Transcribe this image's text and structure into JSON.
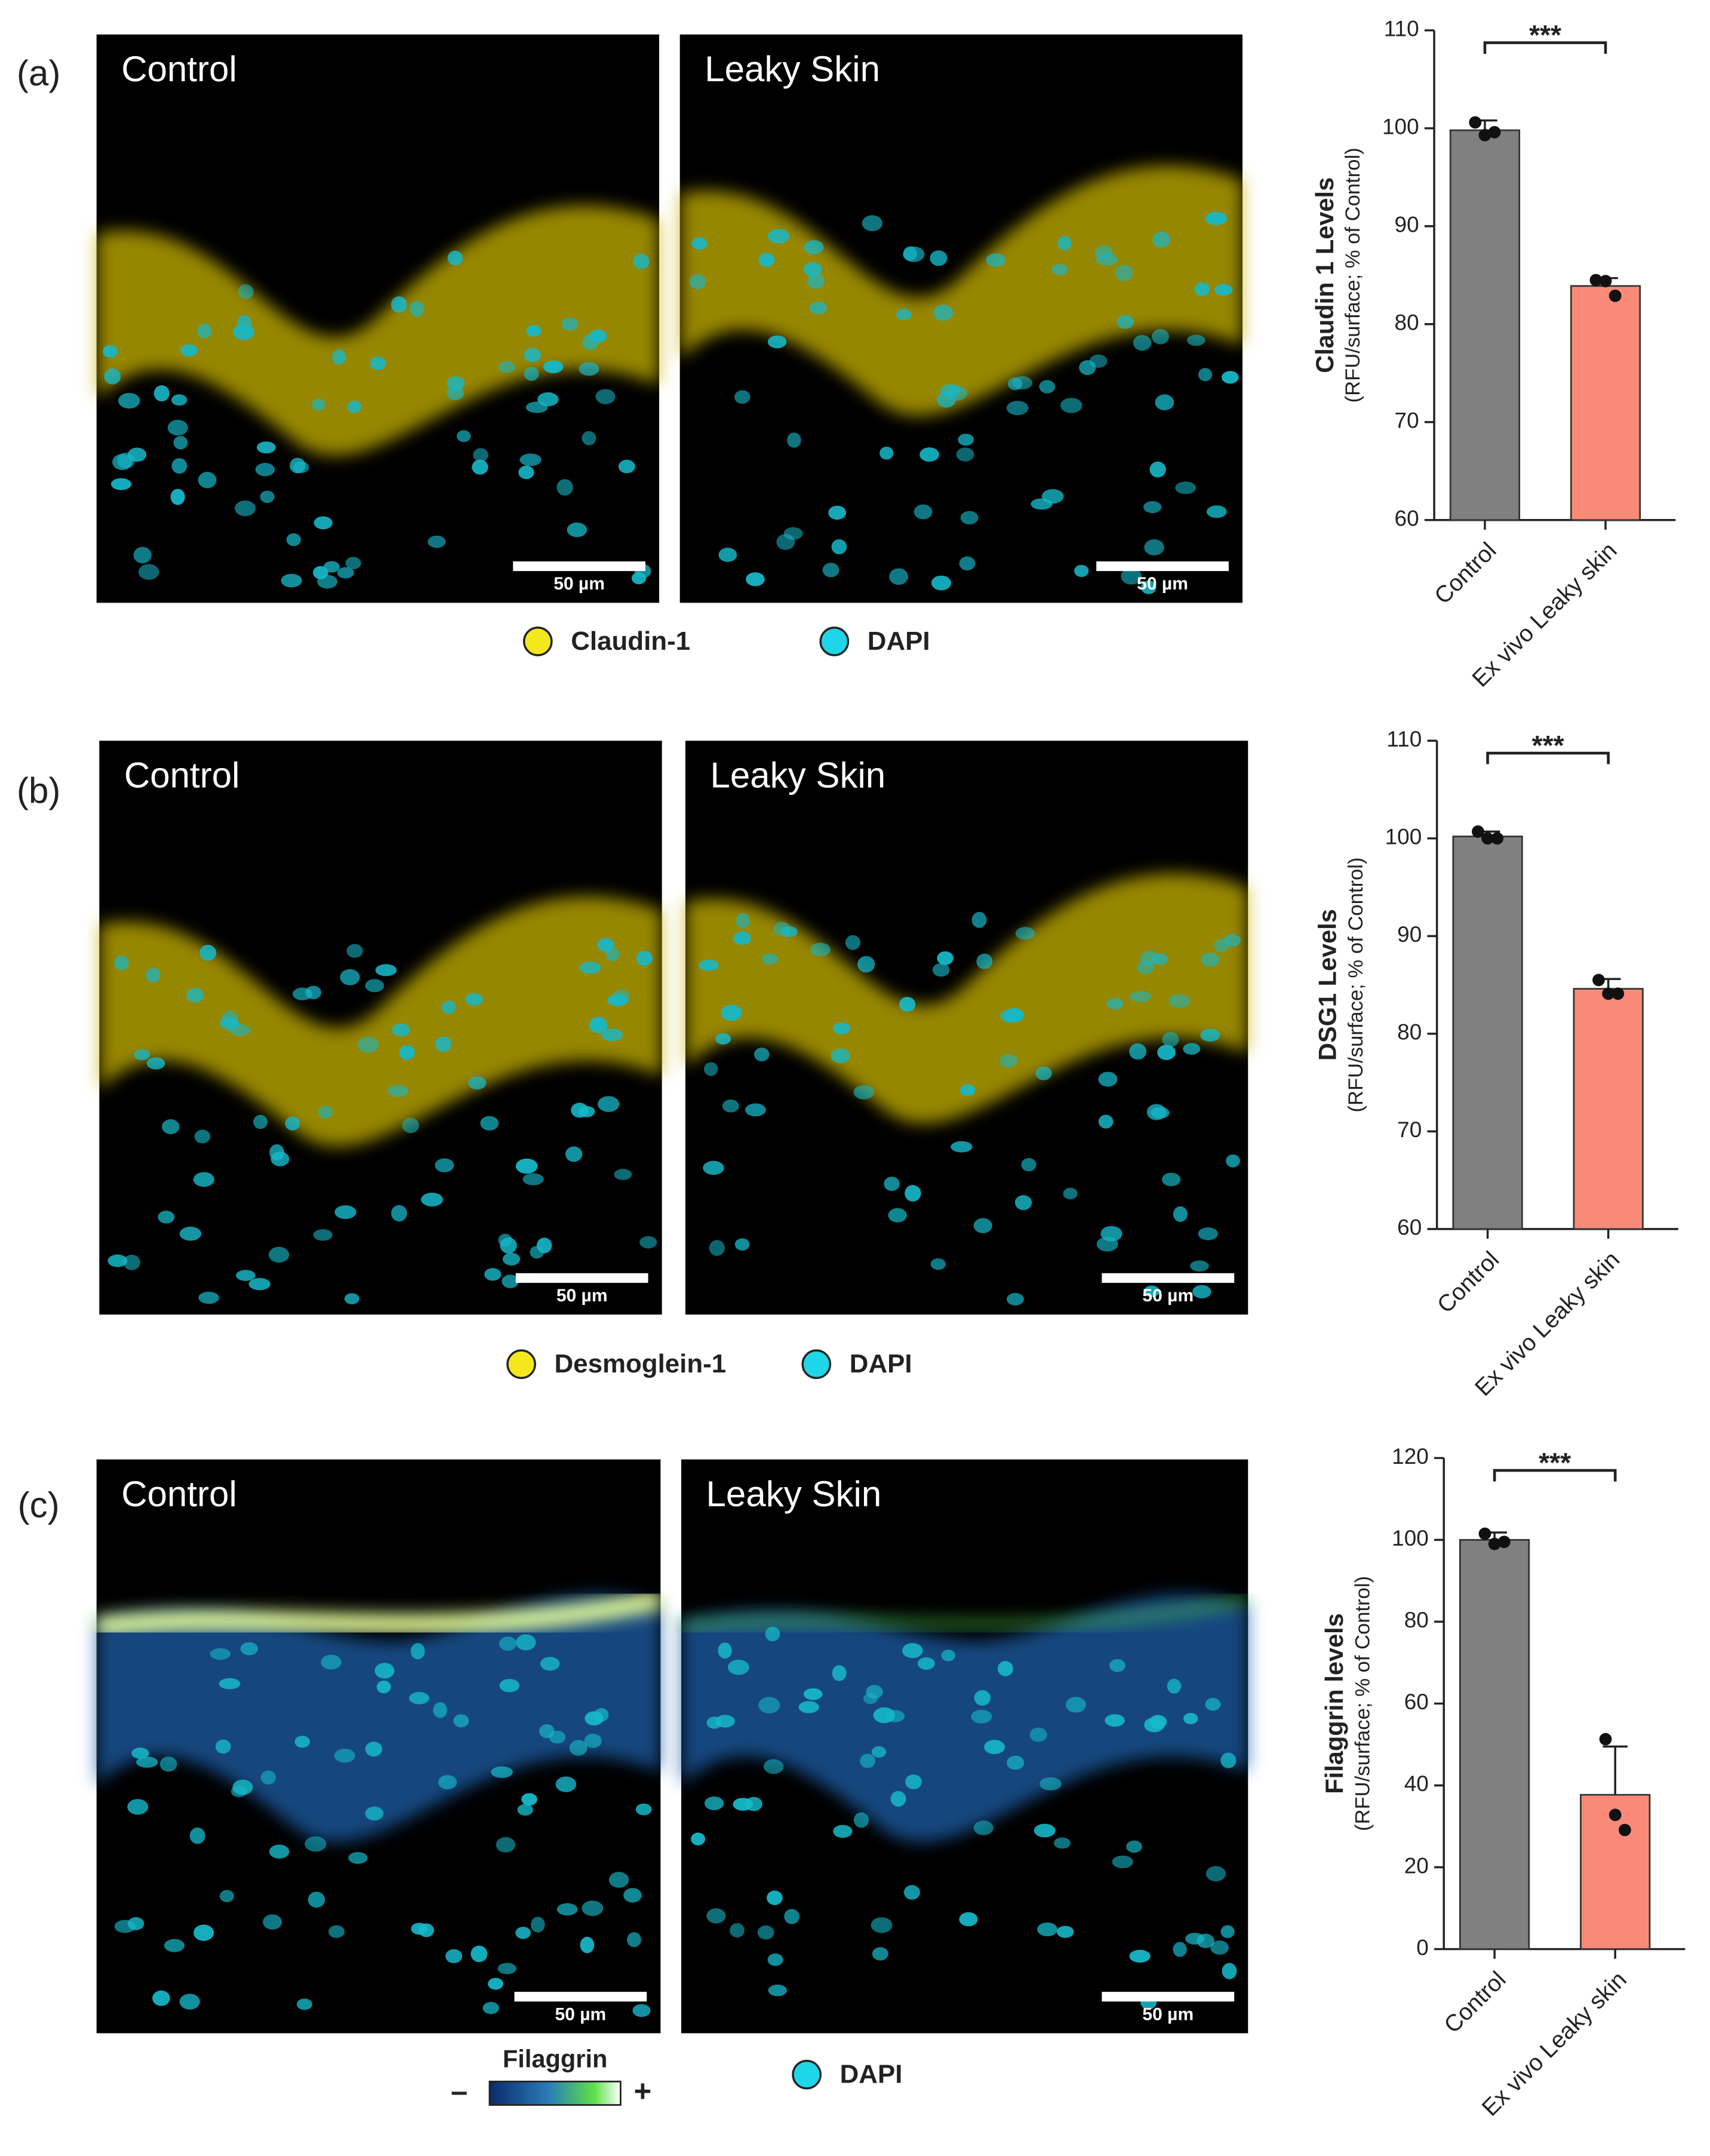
{
  "chart_data": [
    {
      "type": "bar",
      "ylabel": "Claudin 1 Levels",
      "ylabel_sub": "(RFU/surface; % of Control)",
      "categories": [
        "Control",
        "Ex vivo Leaky skin"
      ],
      "values": [
        99.8,
        83.9
      ],
      "errors": [
        1.0,
        0.8
      ],
      "points": [
        [
          100.6,
          99.3,
          99.6
        ],
        [
          84.5,
          84.4,
          82.9
        ]
      ],
      "colors": [
        "#808080",
        "#fa8a78"
      ],
      "ylim": [
        60,
        110
      ],
      "yticks": [
        60,
        70,
        80,
        90,
        100,
        110
      ],
      "significance": "***"
    },
    {
      "type": "bar",
      "ylabel": "DSG1 Levels",
      "ylabel_sub": "(RFU/surface; % of Control)",
      "categories": [
        "Control",
        "Ex vivo Leaky skin"
      ],
      "values": [
        100.2,
        84.6
      ],
      "errors": [
        0.5,
        1.0
      ],
      "points": [
        [
          100.7,
          100.0,
          100.0
        ],
        [
          85.5,
          84.1,
          84.1
        ]
      ],
      "colors": [
        "#808080",
        "#fa8a78"
      ],
      "ylim": [
        60,
        110
      ],
      "yticks": [
        60,
        70,
        80,
        90,
        100,
        110
      ],
      "significance": "***"
    },
    {
      "type": "bar",
      "ylabel": "Filaggrin levels",
      "ylabel_sub": "(RFU/surface; % of Control)",
      "categories": [
        "Control",
        "Ex vivo Leaky skin"
      ],
      "values": [
        100.0,
        37.7
      ],
      "errors": [
        1.8,
        11.8
      ],
      "points": [
        [
          101.5,
          99.0,
          99.5
        ],
        [
          51.3,
          32.8,
          29.1
        ]
      ],
      "colors": [
        "#808080",
        "#fa8a78"
      ],
      "ylim": [
        0,
        120
      ],
      "yticks": [
        0,
        20,
        40,
        60,
        80,
        100,
        120
      ],
      "significance": "***"
    }
  ],
  "panels": [
    {
      "label": "(a)",
      "images": [
        "Control",
        "Leaky Skin"
      ],
      "scale_bar": "50 µm",
      "legend": [
        {
          "name": "Claudin-1",
          "color": "#f3e81c"
        },
        {
          "name": "DAPI",
          "color": "#1fd6e8"
        }
      ]
    },
    {
      "label": "(b)",
      "images": [
        "Control",
        "Leaky Skin"
      ],
      "scale_bar": "50 µm",
      "legend": [
        {
          "name": "Desmoglein-1",
          "color": "#f3e81c"
        },
        {
          "name": "DAPI",
          "color": "#1fd6e8"
        }
      ]
    },
    {
      "label": "(c)",
      "images": [
        "Control",
        "Leaky Skin"
      ],
      "scale_bar": "50 µm",
      "colorbar": {
        "name": "Filaggrin",
        "min_label": "–",
        "max_label": "+"
      },
      "legend": [
        {
          "name": "DAPI",
          "color": "#1fd6e8"
        }
      ]
    }
  ]
}
